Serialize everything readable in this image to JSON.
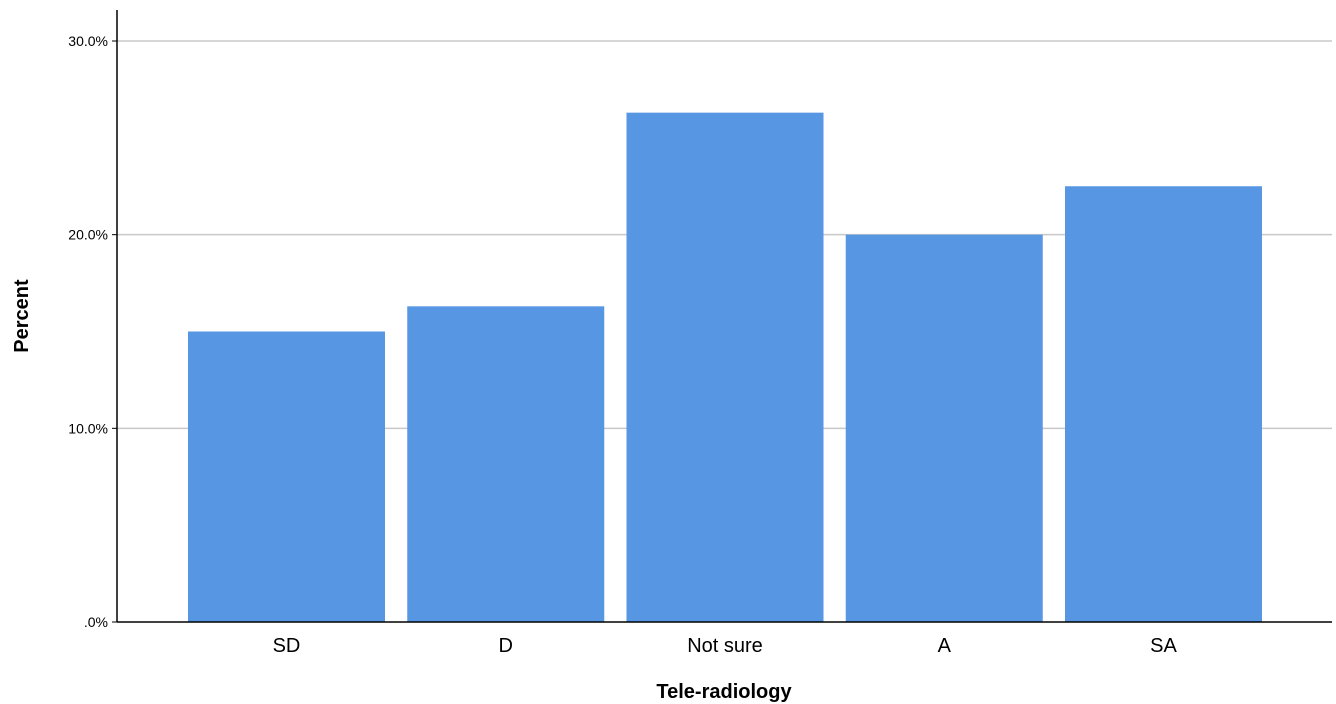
{
  "chart_data": {
    "type": "bar",
    "categories": [
      "SD",
      "D",
      "Not sure",
      "A",
      "SA"
    ],
    "values": [
      15.0,
      16.3,
      26.3,
      20.0,
      22.5
    ],
    "xlabel": "Tele-radiology",
    "ylabel": "Percent",
    "ylim": [
      0,
      30
    ],
    "y_ticks": [
      0,
      10,
      20,
      30
    ],
    "y_tick_labels": [
      ".0%",
      "10.0%",
      "20.0%",
      "30.0%"
    ],
    "grid": true,
    "legend": "none",
    "colors": {
      "bar": "#5796e3",
      "grid": "#c8c8c8",
      "axis": "#000000"
    }
  }
}
